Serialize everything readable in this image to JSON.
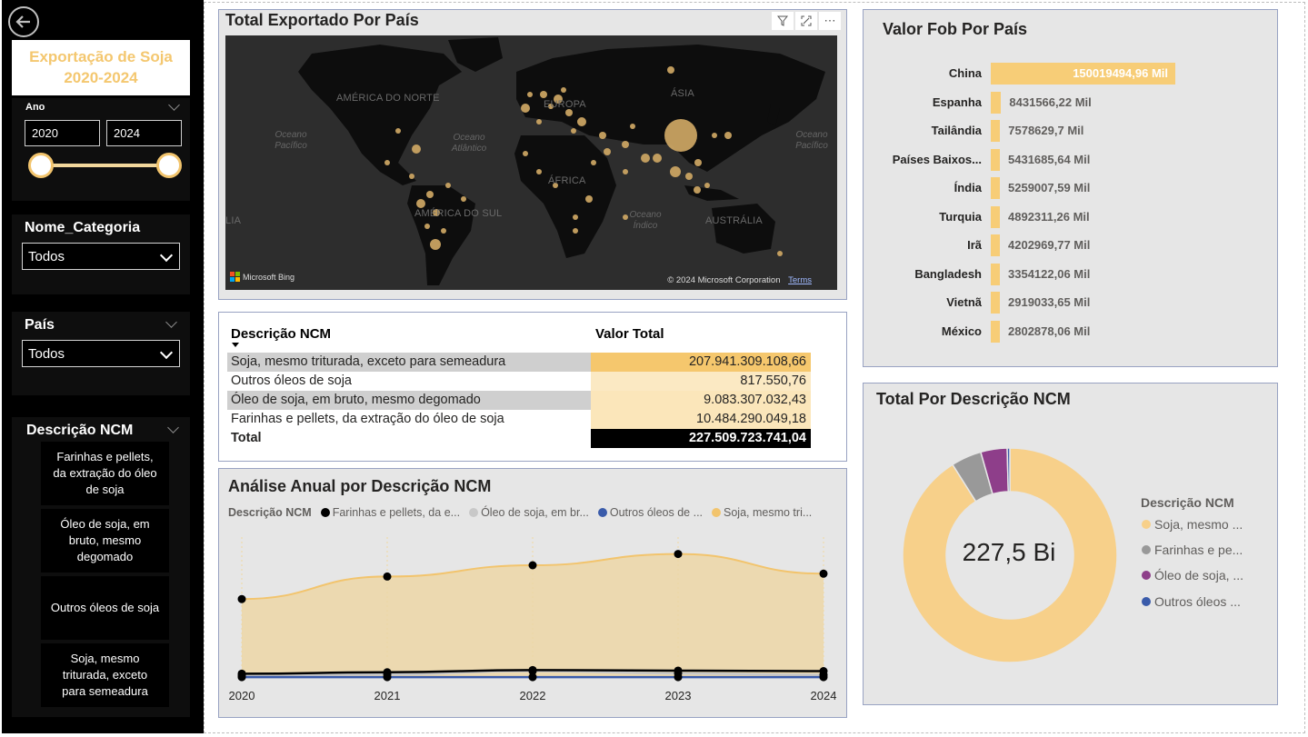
{
  "sidebar": {
    "title": "Exportação de Soja 2020-2024",
    "year_slicer": {
      "label": "Ano",
      "from": "2020",
      "to": "2024"
    },
    "category_slicer": {
      "label": "Nome_Categoria",
      "value": "Todos"
    },
    "country_slicer": {
      "label": "País",
      "value": "Todos"
    },
    "ncm_slicer": {
      "label": "Descrição NCM",
      "items": [
        "Farinhas e pellets, da extração do óleo de soja",
        "Óleo de soja, em bruto, mesmo degomado",
        "Outros óleos de soja",
        "Soja, mesmo triturada, exceto para semeadura"
      ]
    }
  },
  "map": {
    "title": "Total Exportado Por País",
    "continents": [
      "AMÉRICA DO NORTE",
      "EUROPA",
      "ÁSIA",
      "ÁFRICA",
      "AMÉRICA DO SUL",
      "AUSTRÁLIA",
      "LIA"
    ],
    "oceans": [
      "Oceano Pacífico",
      "Oceano Atlântico",
      "Oceano Índico",
      "Oceano Pacífico"
    ],
    "attribution": "Microsoft Bing",
    "copyright": "© 2024 Microsoft Corporation",
    "terms": "Terms"
  },
  "table": {
    "col1": "Descrição NCM",
    "col2": "Valor Total",
    "rows": [
      {
        "desc": "Soja, mesmo triturada, exceto para semeadura",
        "value": "207.941.309.108,66"
      },
      {
        "desc": "Outros óleos de soja",
        "value": "817.550,76"
      },
      {
        "desc": "Óleo de soja, em bruto, mesmo degomado",
        "value": "9.083.307.032,43"
      },
      {
        "desc": "Farinhas e pellets, da extração do óleo de soja",
        "value": "10.484.290.049,18"
      }
    ],
    "total_label": "Total",
    "total_value": "227.509.723.741,04"
  },
  "fob": {
    "title": "Valor Fob Por País",
    "countries": [
      "China",
      "Espanha",
      "Tailândia",
      "Países Baixos...",
      "Índia",
      "Turquia",
      "Irã",
      "Bangladesh",
      "Vietnã",
      "México"
    ],
    "labels": [
      "150019494,96 Mil",
      "8431566,22 Mil",
      "7578629,7 Mil",
      "5431685,64 Mil",
      "5259007,59 Mil",
      "4892311,26 Mil",
      "4202969,77 Mil",
      "3354122,06 Mil",
      "2919033,65 Mil",
      "2802878,06 Mil"
    ],
    "values": [
      150019494.96,
      8431566.22,
      7578629.7,
      5431685.64,
      5259007.59,
      4892311.26,
      4202969.77,
      3354122.06,
      2919033.65,
      2802878.06
    ],
    "bar_color": "#F7CD77"
  },
  "donut": {
    "title": "Total Por Descrição NCM",
    "center_label": "227,5 Bi",
    "legend_title": "Descrição NCM",
    "legend": [
      "Soja, mesmo ...",
      "Farinhas e pe...",
      "Óleo de soja, ...",
      "Outros óleos ..."
    ],
    "colors": [
      "#F7D08A",
      "#999999",
      "#8E3E8A",
      "#3A5BAA"
    ]
  },
  "line_chart": {
    "title": "Análise Anual por Descrição NCM",
    "legend_title": "Descrição NCM",
    "legend": [
      "Farinhas e pellets, da e...",
      "Óleo de soja, em br...",
      "Outros óleos de ...",
      "Soja, mesmo tri..."
    ],
    "legend_colors": [
      "#000000",
      "#c8c8c8",
      "#3a5baa",
      "#f2c46d"
    ]
  },
  "chart_data": [
    {
      "type": "bar",
      "title": "Valor Fob Por País",
      "categories": [
        "China",
        "Espanha",
        "Tailândia",
        "Países Baixos...",
        "Índia",
        "Turquia",
        "Irã",
        "Bangladesh",
        "Vietnã",
        "México"
      ],
      "values": [
        150019494.96,
        8431566.22,
        7578629.7,
        5431685.64,
        5259007.59,
        4892311.26,
        4202969.77,
        3354122.06,
        2919033.65,
        2802878.06
      ]
    },
    {
      "type": "pie",
      "title": "Total Por Descrição NCM",
      "categories": [
        "Soja, mesmo ...",
        "Farinhas e pe...",
        "Óleo de soja, ...",
        "Outros óleos ..."
      ],
      "values": [
        207941309108.66,
        10484290049.18,
        9083307032.43,
        817550.76
      ]
    },
    {
      "type": "area",
      "title": "Análise Anual por Descrição NCM",
      "x": [
        "2020",
        "2021",
        "2022",
        "2023",
        "2024"
      ],
      "series": [
        {
          "name": "Farinhas e pellets, da e...",
          "values": [
            1.5,
            2.0,
            2.8,
            2.6,
            2.4
          ]
        },
        {
          "name": "Óleo de soja, em br...",
          "values": [
            0.8,
            1.3,
            2.4,
            1.6,
            1.1
          ]
        },
        {
          "name": "Outros óleos de ...",
          "values": [
            0.3,
            0.3,
            0.3,
            0.3,
            0.3
          ]
        },
        {
          "name": "Soja, mesmo tri...",
          "values": [
            28,
            36,
            40,
            44,
            37
          ]
        }
      ]
    }
  ]
}
